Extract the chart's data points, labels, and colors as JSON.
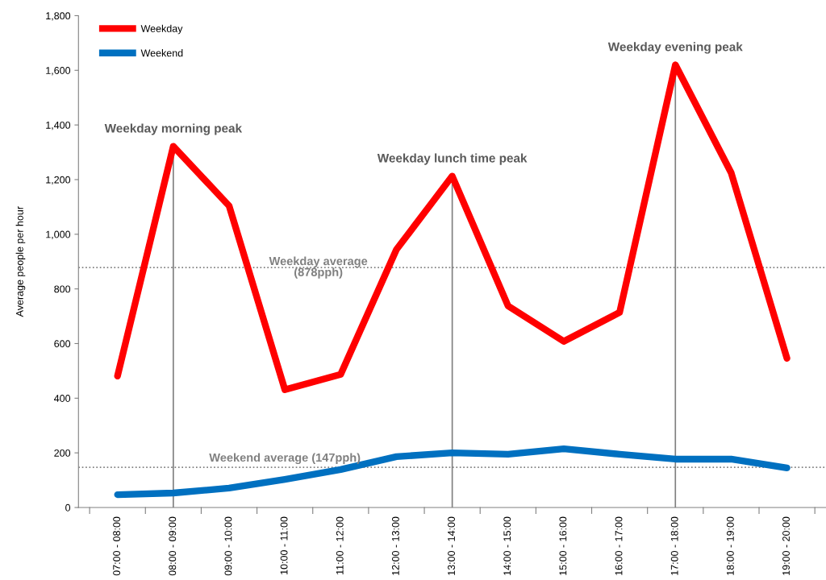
{
  "chart_data": {
    "type": "line",
    "ylabel": "Average people per hour",
    "categories": [
      "07:00 - 08:00",
      "08:00 - 09:00",
      "09:00 - 10:00",
      "10:00 - 11:00",
      "11:00 - 12:00",
      "12:00 - 13:00",
      "13:00 - 14:00",
      "14:00 - 15:00",
      "15:00 - 16:00",
      "16:00 - 17:00",
      "17:00 - 18:00",
      "18:00 - 19:00",
      "19:00 - 20:00"
    ],
    "series": [
      {
        "name": "Weekday",
        "color": "#ff0000",
        "values": [
          481,
          1322,
          1104,
          431,
          487,
          944,
          1213,
          738,
          608,
          714,
          1620,
          1225,
          546
        ]
      },
      {
        "name": "Weekend",
        "color": "#0070c0",
        "values": [
          47,
          53,
          71,
          103,
          139,
          186,
          200,
          195,
          215,
          195,
          177,
          177,
          145
        ]
      }
    ],
    "ylim": [
      0,
      1800
    ],
    "yticks": [
      {
        "value": 0,
        "label": "0"
      },
      {
        "value": 200,
        "label": "200"
      },
      {
        "value": 400,
        "label": "400"
      },
      {
        "value": 600,
        "label": "600"
      },
      {
        "value": 800,
        "label": "800"
      },
      {
        "value": 1000,
        "label": "1,000"
      },
      {
        "value": 1200,
        "label": "1,200"
      },
      {
        "value": 1400,
        "label": "1,400"
      },
      {
        "value": 1600,
        "label": "1,600"
      },
      {
        "value": 1800,
        "label": "1,800"
      }
    ],
    "ref_lines": [
      {
        "axis": "y",
        "value": 878,
        "label": "Weekday average\n(878pph)",
        "color": "#808080",
        "line_style": "dotted"
      },
      {
        "axis": "y",
        "value": 147,
        "label": "Weekend average (147pph)",
        "color": "#808080",
        "line_style": "dotted"
      },
      {
        "axis": "x",
        "value": "08:00 - 09:00",
        "label": "Weekday morning peak",
        "color": "#808080",
        "line_style": "solid"
      },
      {
        "axis": "x",
        "value": "13:00 - 14:00",
        "label": "Weekday lunch time peak",
        "color": "#808080",
        "line_style": "solid"
      },
      {
        "axis": "x",
        "value": "17:00 - 18:00",
        "label": "Weekday evening peak",
        "color": "#808080",
        "line_style": "solid"
      }
    ],
    "legend": "top left",
    "grid": false,
    "marker": "none",
    "line_style": "solid"
  }
}
